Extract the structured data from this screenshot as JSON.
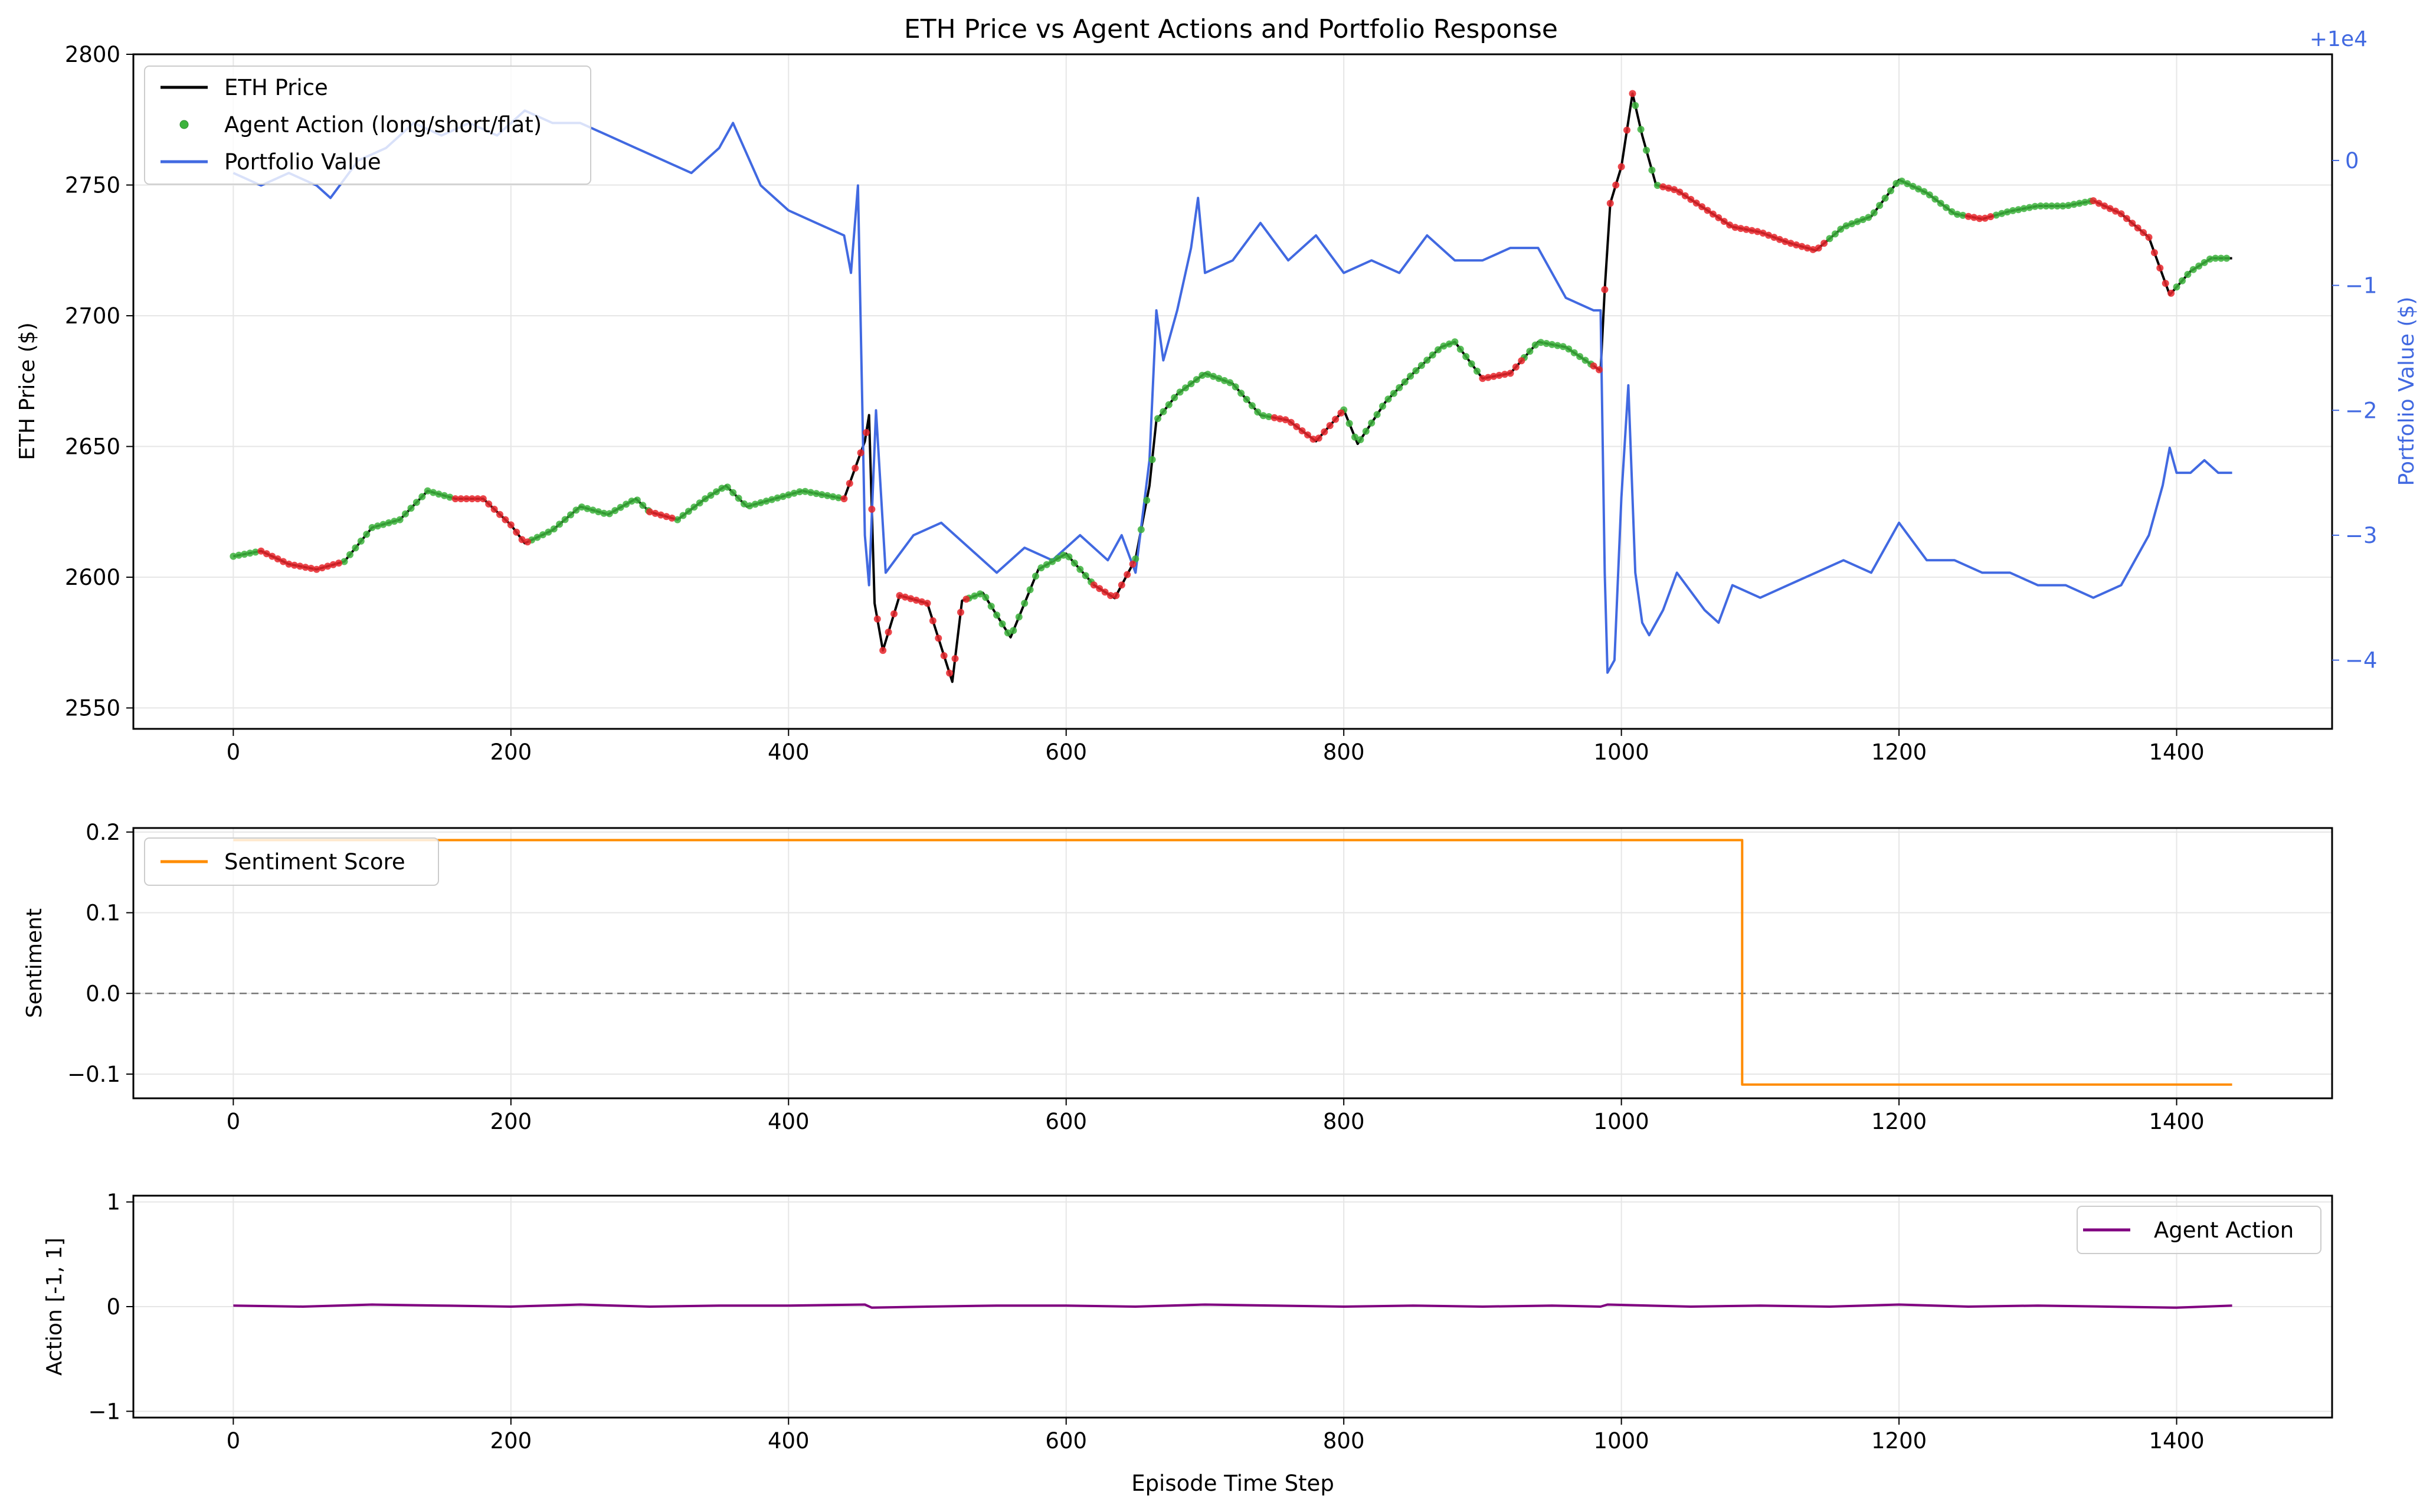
{
  "chart_data": [
    {
      "type": "line",
      "title": "ETH Price vs Agent Actions and Portfolio Response",
      "xlabel": "",
      "ylabel": "ETH Price ($)",
      "ylabel_right": "Portfolio Value ($)",
      "right_axis_offset_label": "+1e4",
      "xlim": [
        -72,
        1512
      ],
      "ylim": [
        2542,
        2800
      ],
      "ylim_right": [
        -4.55,
        0.85
      ],
      "xticks": [
        0,
        200,
        400,
        600,
        800,
        1000,
        1200,
        1400
      ],
      "yticks": [
        2550,
        2600,
        2650,
        2700,
        2750,
        2800
      ],
      "yticks_right": [
        -4,
        -3,
        -2,
        -1,
        0
      ],
      "grid": true,
      "legend_position": "upper left",
      "legend": [
        "ETH Price",
        "Agent Action (long/short/flat)",
        "Portfolio Value"
      ],
      "series": [
        {
          "name": "ETH Price",
          "color": "#000000",
          "axis": "left",
          "x": [
            0,
            20,
            40,
            60,
            80,
            100,
            120,
            140,
            160,
            180,
            200,
            210,
            230,
            250,
            270,
            290,
            300,
            320,
            340,
            355,
            370,
            390,
            410,
            430,
            440,
            455,
            458,
            462,
            468,
            480,
            500,
            518,
            525,
            540,
            560,
            580,
            600,
            620,
            635,
            650,
            660,
            665,
            680,
            700,
            720,
            740,
            760,
            780,
            800,
            810,
            830,
            850,
            870,
            880,
            900,
            920,
            940,
            960,
            985,
            988,
            992,
            1000,
            1008,
            1015,
            1025,
            1040,
            1060,
            1080,
            1100,
            1120,
            1140,
            1160,
            1180,
            1200,
            1220,
            1240,
            1260,
            1280,
            1300,
            1320,
            1340,
            1360,
            1380,
            1395,
            1410,
            1425,
            1440
          ],
          "y": [
            2608,
            2610,
            2605,
            2603,
            2606,
            2619,
            2622,
            2633,
            2630,
            2630,
            2620,
            2613,
            2618,
            2627,
            2624,
            2630,
            2625,
            2622,
            2630,
            2635,
            2627,
            2630,
            2633,
            2631,
            2630,
            2652,
            2662,
            2590,
            2572,
            2593,
            2590,
            2560,
            2591,
            2594,
            2577,
            2603,
            2609,
            2597,
            2592,
            2607,
            2635,
            2660,
            2670,
            2678,
            2674,
            2662,
            2660,
            2652,
            2664,
            2651,
            2667,
            2678,
            2688,
            2690,
            2676,
            2678,
            2690,
            2688,
            2679,
            2710,
            2743,
            2757,
            2785,
            2769,
            2750,
            2748,
            2741,
            2734,
            2732,
            2728,
            2725,
            2734,
            2738,
            2752,
            2747,
            2739,
            2737,
            2740,
            2742,
            2742,
            2744,
            2739,
            2730,
            2708,
            2717,
            2722,
            2722
          ]
        },
        {
          "name": "Portfolio Value",
          "color": "#4169e1",
          "axis": "right",
          "x": [
            0,
            20,
            40,
            60,
            70,
            90,
            110,
            130,
            150,
            170,
            190,
            210,
            230,
            250,
            270,
            290,
            310,
            330,
            350,
            360,
            380,
            400,
            420,
            440,
            445,
            450,
            455,
            458,
            463,
            470,
            490,
            510,
            530,
            550,
            570,
            590,
            610,
            630,
            640,
            650,
            660,
            665,
            670,
            680,
            690,
            695,
            700,
            720,
            740,
            760,
            780,
            800,
            820,
            840,
            860,
            880,
            900,
            920,
            940,
            960,
            980,
            985,
            988,
            990,
            995,
            1000,
            1005,
            1010,
            1015,
            1020,
            1030,
            1040,
            1060,
            1070,
            1080,
            1100,
            1120,
            1140,
            1160,
            1180,
            1200,
            1220,
            1240,
            1260,
            1280,
            1300,
            1320,
            1340,
            1360,
            1380,
            1390,
            1395,
            1400,
            1410,
            1420,
            1430,
            1440
          ],
          "y": [
            -0.1,
            -0.2,
            -0.1,
            -0.2,
            -0.3,
            0.0,
            0.1,
            0.3,
            0.2,
            0.3,
            0.2,
            0.4,
            0.3,
            0.3,
            0.2,
            0.1,
            0.0,
            -0.1,
            0.1,
            0.3,
            -0.2,
            -0.4,
            -0.5,
            -0.6,
            -0.9,
            -0.2,
            -3.0,
            -3.4,
            -2.0,
            -3.3,
            -3.0,
            -2.9,
            -3.1,
            -3.3,
            -3.1,
            -3.2,
            -3.0,
            -3.2,
            -3.0,
            -3.3,
            -2.4,
            -1.2,
            -1.6,
            -1.2,
            -0.7,
            -0.3,
            -0.9,
            -0.8,
            -0.5,
            -0.8,
            -0.6,
            -0.9,
            -0.8,
            -0.9,
            -0.6,
            -0.8,
            -0.8,
            -0.7,
            -0.7,
            -1.1,
            -1.2,
            -1.2,
            -3.3,
            -4.1,
            -4.0,
            -2.7,
            -1.8,
            -3.3,
            -3.7,
            -3.8,
            -3.6,
            -3.3,
            -3.6,
            -3.7,
            -3.4,
            -3.5,
            -3.4,
            -3.3,
            -3.2,
            -3.3,
            -2.9,
            -3.2,
            -3.2,
            -3.3,
            -3.3,
            -3.4,
            -3.4,
            -3.5,
            -3.4,
            -3.0,
            -2.6,
            -2.3,
            -2.5,
            -2.5,
            -2.4,
            -2.5,
            -2.5
          ]
        }
      ],
      "action_markers": {
        "name": "Agent Action (long/short/flat)",
        "long_color": "#3cb33c",
        "short_color": "#e8262b",
        "long_segments": [
          [
            0,
            20
          ],
          [
            80,
            160
          ],
          [
            215,
            300
          ],
          [
            320,
            440
          ],
          [
            530,
            620
          ],
          [
            650,
            750
          ],
          [
            800,
            900
          ],
          [
            930,
            980
          ],
          [
            1010,
            1030
          ],
          [
            1150,
            1250
          ],
          [
            1270,
            1340
          ],
          [
            1400,
            1440
          ]
        ],
        "short_segments": [
          [
            20,
            80
          ],
          [
            160,
            215
          ],
          [
            300,
            320
          ],
          [
            440,
            530
          ],
          [
            620,
            650
          ],
          [
            750,
            800
          ],
          [
            900,
            930
          ],
          [
            980,
            1010
          ],
          [
            1030,
            1150
          ],
          [
            1250,
            1270
          ],
          [
            1340,
            1400
          ]
        ]
      }
    },
    {
      "type": "line",
      "title": "",
      "xlabel": "",
      "ylabel": "Sentiment",
      "xlim": [
        -72,
        1512
      ],
      "ylim": [
        -0.13,
        0.205
      ],
      "xticks": [
        0,
        200,
        400,
        600,
        800,
        1000,
        1200,
        1400
      ],
      "yticks": [
        -0.1,
        0.0,
        0.1,
        0.2
      ],
      "ytick_labels": [
        "−0.1",
        "0.0",
        "0.1",
        "0.2"
      ],
      "grid": true,
      "legend_position": "upper left",
      "reference_line": {
        "y": 0.0,
        "style": "dashed",
        "color": "#777777"
      },
      "series": [
        {
          "name": "Sentiment Score",
          "color": "#ff8c00",
          "x": [
            0,
            1087,
            1087,
            1440
          ],
          "y": [
            0.19,
            0.19,
            -0.113,
            -0.113
          ]
        }
      ]
    },
    {
      "type": "line",
      "title": "",
      "xlabel": "Episode Time Step",
      "ylabel": "Action [-1, 1]",
      "xlim": [
        -72,
        1512
      ],
      "ylim": [
        -1.06,
        1.06
      ],
      "xticks": [
        0,
        200,
        400,
        600,
        800,
        1000,
        1200,
        1400
      ],
      "yticks": [
        -1,
        0,
        1
      ],
      "ytick_labels": [
        "−1",
        "0",
        "1"
      ],
      "grid": true,
      "legend_position": "upper right",
      "series": [
        {
          "name": "Agent Action",
          "color": "#800080",
          "x": [
            0,
            50,
            100,
            150,
            200,
            250,
            300,
            350,
            400,
            455,
            460,
            500,
            550,
            600,
            650,
            700,
            750,
            800,
            850,
            900,
            950,
            985,
            990,
            1050,
            1100,
            1150,
            1200,
            1250,
            1300,
            1350,
            1400,
            1440
          ],
          "y": [
            0.01,
            0.0,
            0.02,
            0.01,
            0.0,
            0.02,
            0.0,
            0.01,
            0.01,
            0.02,
            -0.01,
            0.0,
            0.01,
            0.01,
            0.0,
            0.02,
            0.01,
            0.0,
            0.01,
            0.0,
            0.01,
            0.0,
            0.02,
            0.0,
            0.01,
            0.0,
            0.02,
            0.0,
            0.01,
            0.0,
            -0.01,
            0.01
          ]
        }
      ]
    }
  ]
}
